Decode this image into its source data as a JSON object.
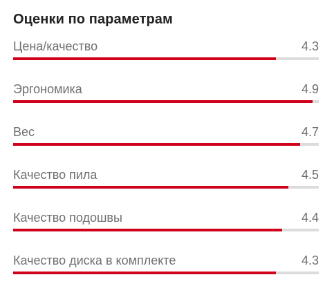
{
  "header": {
    "title": "Оценки по параметрам"
  },
  "colors": {
    "bar_fill": "#d0021b",
    "bar_track": "#dcdcdc",
    "label_text": "#6f6f6f",
    "title_text": "#222222"
  },
  "rating_scale_max": 5,
  "ratings": [
    {
      "label": "Цена/качество",
      "value": "4.3",
      "score": 4.3
    },
    {
      "label": "Эргономика",
      "value": "4.9",
      "score": 4.9
    },
    {
      "label": "Вес",
      "value": "4.7",
      "score": 4.7
    },
    {
      "label": "Качество пила",
      "value": "4.5",
      "score": 4.5
    },
    {
      "label": "Качество подошвы",
      "value": "4.4",
      "score": 4.4
    },
    {
      "label": "Качество диска в комплекте",
      "value": "4.3",
      "score": 4.3
    }
  ]
}
